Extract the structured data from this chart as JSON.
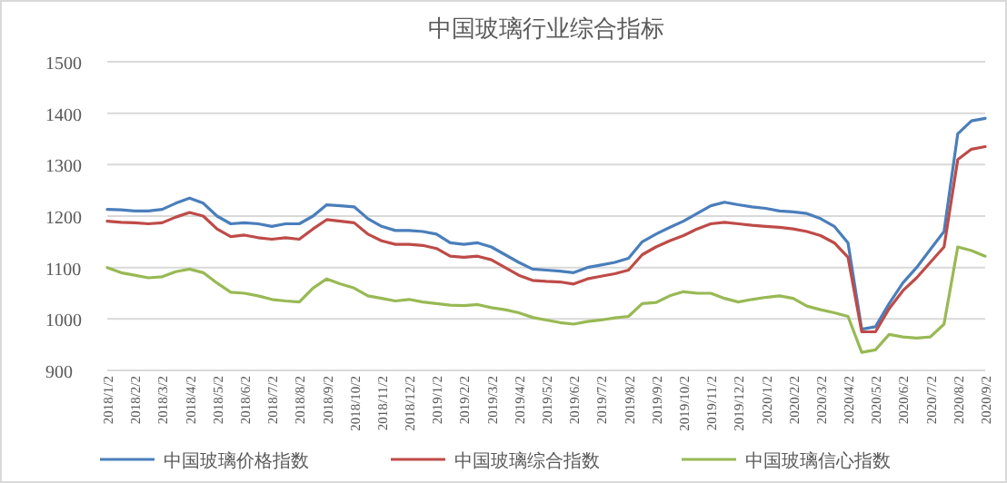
{
  "chart_data": {
    "type": "line",
    "title": "中国玻璃行业综合指标",
    "categories": [
      "2018/1/2",
      null,
      "2018/2/2",
      null,
      "2018/3/2",
      null,
      "2018/4/2",
      null,
      "2018/5/2",
      null,
      "2018/6/2",
      null,
      "2018/7/2",
      null,
      "2018/8/2",
      null,
      "2018/9/2",
      null,
      "2018/10/2",
      null,
      "2018/11/2",
      null,
      "2018/12/2",
      null,
      "2019/1/2",
      null,
      "2019/2/2",
      null,
      "2019/3/2",
      null,
      "2019/4/2",
      null,
      "2019/5/2",
      null,
      "2019/6/2",
      null,
      "2019/7/2",
      null,
      "2019/8/2",
      null,
      "2019/9/2",
      null,
      "2019/10/2",
      null,
      "2019/11/2",
      null,
      "2019/12/2",
      null,
      "2020/1/2",
      null,
      "2020/2/2",
      null,
      "2020/3/2",
      null,
      "2020/4/2",
      null,
      "2020/5/2",
      null,
      "2020/6/2",
      null,
      "2020/7/2",
      null,
      "2020/8/2",
      null,
      "2020/9/2"
    ],
    "series": [
      {
        "name": "中国玻璃价格指数",
        "color": "#4a7ebb",
        "values": [
          1213,
          1212,
          1210,
          1210,
          1213,
          1225,
          1235,
          1225,
          1200,
          1185,
          1187,
          1185,
          1180,
          1185,
          1185,
          1200,
          1222,
          1220,
          1218,
          1195,
          1180,
          1172,
          1172,
          1170,
          1165,
          1148,
          1145,
          1148,
          1140,
          1125,
          1110,
          1097,
          1095,
          1093,
          1090,
          1100,
          1105,
          1110,
          1118,
          1150,
          1165,
          1178,
          1190,
          1205,
          1220,
          1227,
          1222,
          1218,
          1215,
          1210,
          1208,
          1205,
          1195,
          1180,
          1148,
          980,
          985,
          1030,
          1070,
          1100,
          1135,
          1170,
          1360,
          1385,
          1390
        ]
      },
      {
        "name": "中国玻璃综合指数",
        "color": "#be4b48",
        "values": [
          1190,
          1188,
          1187,
          1185,
          1187,
          1198,
          1207,
          1200,
          1175,
          1160,
          1163,
          1158,
          1155,
          1158,
          1155,
          1175,
          1193,
          1190,
          1187,
          1165,
          1152,
          1145,
          1145,
          1143,
          1137,
          1122,
          1120,
          1122,
          1115,
          1100,
          1085,
          1075,
          1073,
          1072,
          1068,
          1078,
          1083,
          1088,
          1095,
          1125,
          1140,
          1152,
          1162,
          1175,
          1185,
          1188,
          1185,
          1182,
          1180,
          1178,
          1175,
          1170,
          1162,
          1148,
          1120,
          975,
          975,
          1020,
          1055,
          1080,
          1110,
          1140,
          1310,
          1330,
          1335
        ]
      },
      {
        "name": "中国玻璃信心指数",
        "color": "#98b954",
        "values": [
          1100,
          1090,
          1085,
          1080,
          1082,
          1092,
          1097,
          1090,
          1070,
          1052,
          1050,
          1045,
          1038,
          1035,
          1033,
          1060,
          1078,
          1068,
          1060,
          1045,
          1040,
          1035,
          1038,
          1033,
          1030,
          1027,
          1026,
          1028,
          1022,
          1018,
          1012,
          1003,
          998,
          993,
          990,
          995,
          998,
          1002,
          1005,
          1030,
          1032,
          1045,
          1053,
          1050,
          1050,
          1040,
          1033,
          1038,
          1042,
          1045,
          1040,
          1025,
          1018,
          1012,
          1005,
          935,
          940,
          970,
          965,
          963,
          965,
          990,
          1140,
          1133,
          1122
        ]
      }
    ],
    "ylim": [
      900,
      1500
    ],
    "yticks": [
      900,
      1000,
      1100,
      1200,
      1300,
      1400,
      1500
    ],
    "grid": "y",
    "legend": "bottom"
  }
}
